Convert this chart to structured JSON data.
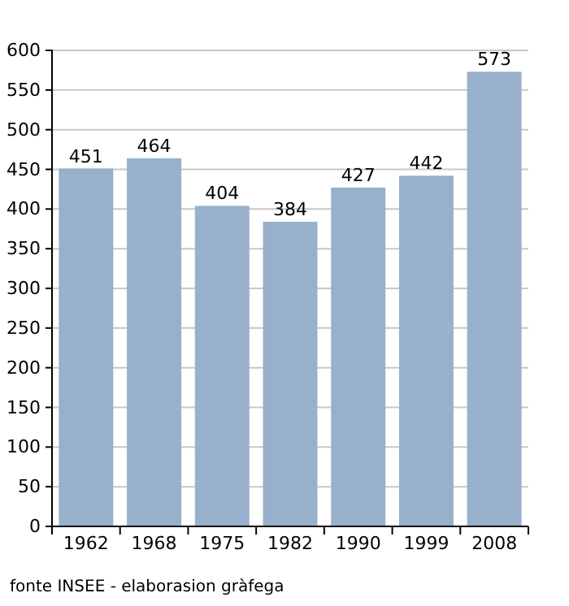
{
  "chart_data": {
    "type": "bar",
    "categories": [
      "1962",
      "1968",
      "1975",
      "1982",
      "1990",
      "1999",
      "2008"
    ],
    "values": [
      451,
      464,
      404,
      384,
      427,
      442,
      573
    ],
    "color": "#98b0cb",
    "ylim": [
      0,
      600
    ],
    "yticks": [
      0,
      50,
      100,
      150,
      200,
      250,
      300,
      350,
      400,
      450,
      500,
      550,
      600
    ],
    "grid": "y",
    "data_labels": true,
    "annotations": [
      "fonte INSEE - elaborasion gràfega"
    ]
  }
}
